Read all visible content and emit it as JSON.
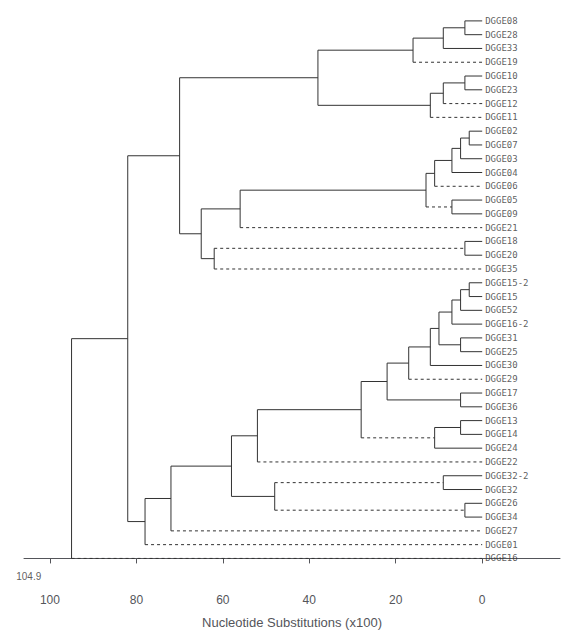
{
  "chart_data": {
    "type": "dendrogram",
    "xlabel": "Nucleotide Substitutions (x100)",
    "xlim": [
      106,
      -18
    ],
    "xticks": [
      100,
      80,
      60,
      40,
      20,
      0
    ],
    "grid": false,
    "annotations": [
      {
        "text": "104.9",
        "x": 104.9
      }
    ],
    "categories": [
      "DGGE08",
      "DGGE28",
      "DGGE33",
      "DGGE19",
      "DGGE10",
      "DGGE23",
      "DGGE12",
      "DGGE11",
      "DGGE02",
      "DGGE07",
      "DGGE03",
      "DGGE04",
      "DGGE06",
      "DGGE05",
      "DGGE09",
      "DGGE21",
      "DGGE18",
      "DGGE20",
      "DGGE35",
      "DGGE15-2",
      "DGGE15",
      "DGGE52",
      "DGGE16-2",
      "DGGE31",
      "DGGE25",
      "DGGE30",
      "DGGE29",
      "DGGE17",
      "DGGE36",
      "DGGE13",
      "DGGE14",
      "DGGE24",
      "DGGE22",
      "DGGE32-2",
      "DGGE32",
      "DGGE26",
      "DGGE34",
      "DGGE27",
      "DGGE01",
      "DGGE16"
    ],
    "tree": {
      "height": 95,
      "children": [
        {
          "height": 82,
          "children": [
            {
              "height": 70,
              "children": [
                {
                  "height": 38,
                  "children": [
                    {
                      "height": 16,
                      "children": [
                        {
                          "height": 9,
                          "children": [
                            {
                              "height": 4,
                              "children": [
                                {
                                  "label": "DGGE08",
                                  "height": 0
                                },
                                {
                                  "label": "DGGE28",
                                  "height": 0
                                }
                              ]
                            },
                            {
                              "label": "DGGE33",
                              "height": 0
                            }
                          ]
                        },
                        {
                          "label": "DGGE19",
                          "height": 0,
                          "line_style": "dashed"
                        }
                      ]
                    },
                    {
                      "height": 12,
                      "children": [
                        {
                          "height": 9,
                          "children": [
                            {
                              "height": 4,
                              "children": [
                                {
                                  "label": "DGGE10",
                                  "height": 0
                                },
                                {
                                  "label": "DGGE23",
                                  "height": 0
                                }
                              ]
                            },
                            {
                              "label": "DGGE12",
                              "height": 0,
                              "line_style": "dashed"
                            }
                          ]
                        },
                        {
                          "label": "DGGE11",
                          "height": 0,
                          "line_style": "dashed"
                        }
                      ]
                    }
                  ]
                },
                {
                  "height": 65,
                  "children": [
                    {
                      "height": 56,
                      "children": [
                        {
                          "height": 13,
                          "children": [
                            {
                              "height": 11,
                              "children": [
                                {
                                  "height": 7,
                                  "children": [
                                    {
                                      "height": 5,
                                      "children": [
                                        {
                                          "height": 3,
                                          "children": [
                                            {
                                              "label": "DGGE02",
                                              "height": 0
                                            },
                                            {
                                              "label": "DGGE07",
                                              "height": 0
                                            }
                                          ]
                                        },
                                        {
                                          "label": "DGGE03",
                                          "height": 0
                                        }
                                      ]
                                    },
                                    {
                                      "label": "DGGE04",
                                      "height": 0
                                    }
                                  ]
                                },
                                {
                                  "label": "DGGE06",
                                  "height": 0,
                                  "line_style": "dashed"
                                }
                              ]
                            },
                            {
                              "height": 7,
                              "line_style": "dashed",
                              "children": [
                                {
                                  "label": "DGGE05",
                                  "height": 0
                                },
                                {
                                  "label": "DGGE09",
                                  "height": 0
                                }
                              ]
                            }
                          ]
                        },
                        {
                          "label": "DGGE21",
                          "height": 0,
                          "line_style": "dashed"
                        }
                      ]
                    },
                    {
                      "height": 62,
                      "children": [
                        {
                          "height": 4,
                          "line_style": "dashed",
                          "children": [
                            {
                              "label": "DGGE18",
                              "height": 0
                            },
                            {
                              "label": "DGGE20",
                              "height": 0
                            }
                          ]
                        },
                        {
                          "label": "DGGE35",
                          "height": 0,
                          "line_style": "dashed"
                        }
                      ]
                    }
                  ]
                }
              ]
            },
            {
              "height": 78,
              "children": [
                {
                  "height": 72,
                  "children": [
                    {
                      "height": 58,
                      "children": [
                        {
                          "height": 52,
                          "children": [
                            {
                              "height": 28,
                              "children": [
                                {
                                  "height": 22,
                                  "children": [
                                    {
                                      "height": 17,
                                      "children": [
                                        {
                                          "height": 12,
                                          "children": [
                                            {
                                              "height": 10,
                                              "children": [
                                                {
                                                  "height": 7,
                                                  "children": [
                                                    {
                                                      "height": 5,
                                                      "children": [
                                                        {
                                                          "height": 3,
                                                          "children": [
                                                            {
                                                              "label": "DGGE15-2",
                                                              "height": 0
                                                            },
                                                            {
                                                              "label": "DGGE15",
                                                              "height": 0
                                                            }
                                                          ]
                                                        },
                                                        {
                                                          "label": "DGGE52",
                                                          "height": 0
                                                        }
                                                      ]
                                                    },
                                                    {
                                                      "label": "DGGE16-2",
                                                      "height": 0
                                                    }
                                                  ]
                                                },
                                                {
                                                  "height": 5,
                                                  "children": [
                                                    {
                                                      "label": "DGGE31",
                                                      "height": 0
                                                    },
                                                    {
                                                      "label": "DGGE25",
                                                      "height": 0
                                                    }
                                                  ]
                                                }
                                              ]
                                            },
                                            {
                                              "label": "DGGE30",
                                              "height": 0
                                            }
                                          ]
                                        },
                                        {
                                          "label": "DGGE29",
                                          "height": 0,
                                          "line_style": "dashed"
                                        }
                                      ]
                                    },
                                    {
                                      "height": 5,
                                      "children": [
                                        {
                                          "label": "DGGE17",
                                          "height": 0
                                        },
                                        {
                                          "label": "DGGE36",
                                          "height": 0
                                        }
                                      ]
                                    }
                                  ]
                                },
                                {
                                  "height": 11,
                                  "line_style": "dashed",
                                  "children": [
                                    {
                                      "height": 5,
                                      "children": [
                                        {
                                          "label": "DGGE13",
                                          "height": 0
                                        },
                                        {
                                          "label": "DGGE14",
                                          "height": 0
                                        }
                                      ]
                                    },
                                    {
                                      "label": "DGGE24",
                                      "height": 0
                                    }
                                  ]
                                }
                              ]
                            },
                            {
                              "label": "DGGE22",
                              "height": 0,
                              "line_style": "dashed"
                            }
                          ]
                        },
                        {
                          "height": 48,
                          "children": [
                            {
                              "height": 9,
                              "line_style": "dashed",
                              "children": [
                                {
                                  "label": "DGGE32-2",
                                  "height": 0
                                },
                                {
                                  "label": "DGGE32",
                                  "height": 0
                                }
                              ]
                            },
                            {
                              "height": 4,
                              "line_style": "dashed",
                              "children": [
                                {
                                  "label": "DGGE26",
                                  "height": 0
                                },
                                {
                                  "label": "DGGE34",
                                  "height": 0
                                }
                              ]
                            }
                          ]
                        }
                      ]
                    },
                    {
                      "label": "DGGE27",
                      "height": 0,
                      "line_style": "dashed"
                    }
                  ]
                },
                {
                  "label": "DGGE01",
                  "height": 0,
                  "line_style": "dashed"
                }
              ]
            }
          ]
        },
        {
          "label": "DGGE16",
          "height": 0,
          "line_style": "dashed"
        }
      ]
    }
  }
}
